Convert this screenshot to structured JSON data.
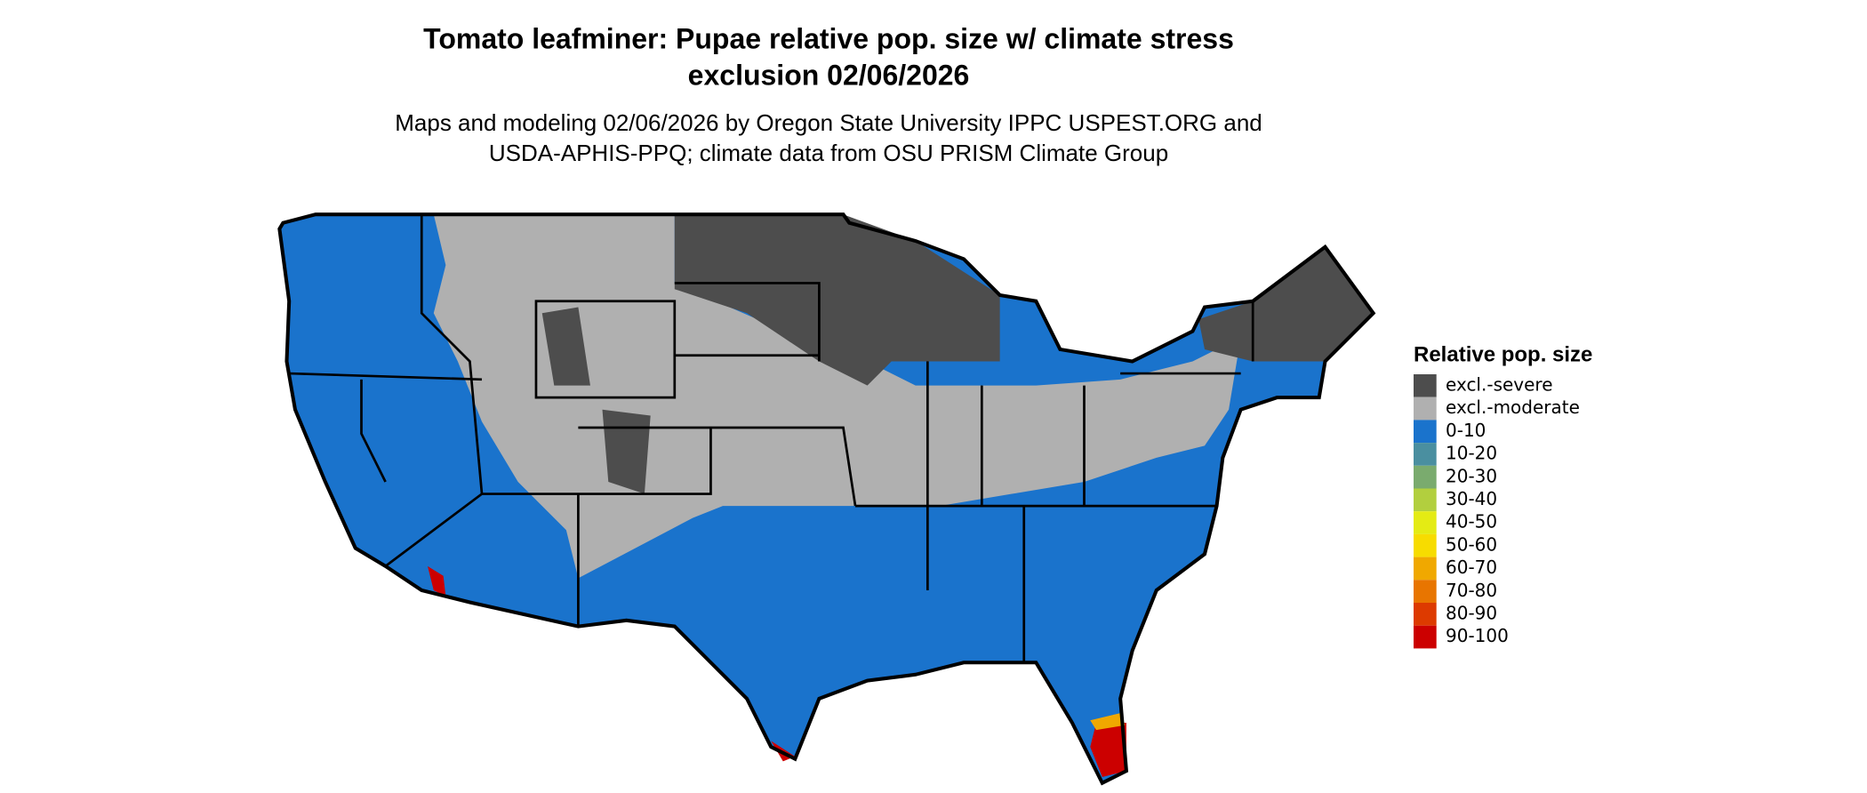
{
  "title_lines": [
    "Tomato leafminer: Pupae relative pop. size w/ climate stress",
    "exclusion 02/06/2026"
  ],
  "subtitle_lines": [
    "Maps and modeling 02/06/2026 by Oregon State University IPPC USPEST.ORG and",
    "USDA-APHIS-PPQ; climate data from OSU PRISM Climate Group"
  ],
  "legend": {
    "title": "Relative pop. size",
    "items": [
      {
        "label": "excl.-severe",
        "color": "#4d4d4d"
      },
      {
        "label": "excl.-moderate",
        "color": "#b0b0b0"
      },
      {
        "label": "0-10",
        "color": "#1a73cc"
      },
      {
        "label": "10-20",
        "color": "#4a8fa0"
      },
      {
        "label": "20-30",
        "color": "#7aab6e"
      },
      {
        "label": "30-40",
        "color": "#b2cf3e"
      },
      {
        "label": "40-50",
        "color": "#e4eb14"
      },
      {
        "label": "50-60",
        "color": "#f7dc00"
      },
      {
        "label": "60-70",
        "color": "#f0a800"
      },
      {
        "label": "70-80",
        "color": "#e87500"
      },
      {
        "label": "80-90",
        "color": "#dd3a00"
      },
      {
        "label": "90-100",
        "color": "#cc0000"
      }
    ]
  }
}
